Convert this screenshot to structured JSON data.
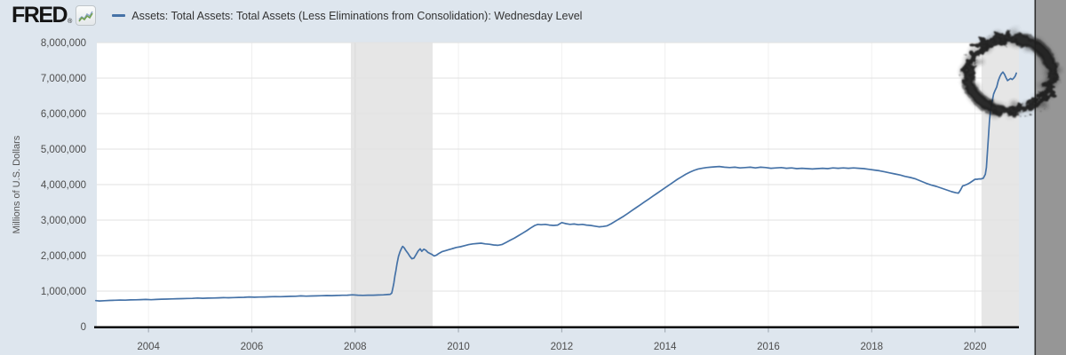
{
  "page": {
    "background": "#dee6ee"
  },
  "header": {
    "logo_text": "FRED",
    "registered_mark": "®",
    "logo_icon": "sparkline-chart-icon",
    "legend": {
      "swatch_color": "#4572a7",
      "label": "Assets: Total Assets: Total Assets (Less Eliminations from Consolidation): Wednesday Level"
    }
  },
  "y_axis_title": "Millions of U.S. Dollars",
  "right_panel": {
    "color": "#969696",
    "divider_color": "#2f2f2f"
  },
  "chart_data": {
    "type": "line",
    "title": "",
    "xlabel": "",
    "ylabel": "Millions of U.S. Dollars",
    "series_name": "Assets: Total Assets: Total Assets (Less Eliminations from Consolidation): Wednesday Level",
    "line_color": "#4572a7",
    "plot_background": "#ffffff",
    "grid": true,
    "gridline_color": "#e1e1e1",
    "vertical_gridline_color": "#f0f0f0",
    "recession_band_color": "#888888",
    "recession_band_opacity": 0.21,
    "x_range": [
      2003.0,
      2020.85
    ],
    "y_range": [
      0,
      8000000
    ],
    "x_ticks": [
      2004,
      2006,
      2008,
      2010,
      2012,
      2014,
      2016,
      2018,
      2020
    ],
    "y_ticks": [
      0,
      1000000,
      2000000,
      3000000,
      4000000,
      5000000,
      6000000,
      7000000,
      8000000
    ],
    "recession_bands": [
      {
        "from": 2007.917,
        "to": 2009.5
      },
      {
        "from": 2020.125,
        "to": 2020.85
      }
    ],
    "annotation": {
      "type": "hand-drawn-circle",
      "cx_year": 2020.68,
      "cy_value": 7100000,
      "rx_years": 0.82,
      "ry_value": 1020000,
      "color": "#1c1c1c"
    },
    "points": [
      [
        2002.98,
        732000
      ],
      [
        2003.05,
        722000
      ],
      [
        2003.15,
        730000
      ],
      [
        2003.25,
        738000
      ],
      [
        2003.35,
        742000
      ],
      [
        2003.45,
        748000
      ],
      [
        2003.55,
        744000
      ],
      [
        2003.65,
        752000
      ],
      [
        2003.75,
        756000
      ],
      [
        2003.85,
        760000
      ],
      [
        2003.95,
        766000
      ],
      [
        2004.05,
        758000
      ],
      [
        2004.15,
        764000
      ],
      [
        2004.25,
        772000
      ],
      [
        2004.35,
        776000
      ],
      [
        2004.45,
        780000
      ],
      [
        2004.55,
        784000
      ],
      [
        2004.65,
        788000
      ],
      [
        2004.75,
        792000
      ],
      [
        2004.85,
        796000
      ],
      [
        2004.95,
        804000
      ],
      [
        2005.05,
        798000
      ],
      [
        2005.15,
        802000
      ],
      [
        2005.25,
        806000
      ],
      [
        2005.35,
        810000
      ],
      [
        2005.45,
        814000
      ],
      [
        2005.55,
        812000
      ],
      [
        2005.65,
        818000
      ],
      [
        2005.75,
        822000
      ],
      [
        2005.85,
        826000
      ],
      [
        2005.95,
        834000
      ],
      [
        2006.05,
        828000
      ],
      [
        2006.15,
        832000
      ],
      [
        2006.25,
        836000
      ],
      [
        2006.35,
        840000
      ],
      [
        2006.45,
        844000
      ],
      [
        2006.55,
        842000
      ],
      [
        2006.65,
        848000
      ],
      [
        2006.75,
        852000
      ],
      [
        2006.85,
        856000
      ],
      [
        2006.95,
        864000
      ],
      [
        2007.05,
        858000
      ],
      [
        2007.15,
        862000
      ],
      [
        2007.25,
        866000
      ],
      [
        2007.35,
        870000
      ],
      [
        2007.45,
        874000
      ],
      [
        2007.55,
        872000
      ],
      [
        2007.65,
        878000
      ],
      [
        2007.75,
        882000
      ],
      [
        2007.85,
        886000
      ],
      [
        2007.95,
        894000
      ],
      [
        2008.05,
        884000
      ],
      [
        2008.15,
        880000
      ],
      [
        2008.25,
        886000
      ],
      [
        2008.35,
        884000
      ],
      [
        2008.45,
        890000
      ],
      [
        2008.55,
        894000
      ],
      [
        2008.62,
        902000
      ],
      [
        2008.68,
        910000
      ],
      [
        2008.71,
        945000
      ],
      [
        2008.73,
        1080000
      ],
      [
        2008.75,
        1230000
      ],
      [
        2008.77,
        1420000
      ],
      [
        2008.79,
        1580000
      ],
      [
        2008.81,
        1770000
      ],
      [
        2008.84,
        1980000
      ],
      [
        2008.87,
        2110000
      ],
      [
        2008.9,
        2210000
      ],
      [
        2008.92,
        2260000
      ],
      [
        2008.95,
        2220000
      ],
      [
        2008.98,
        2150000
      ],
      [
        2009.02,
        2070000
      ],
      [
        2009.06,
        1980000
      ],
      [
        2009.1,
        1910000
      ],
      [
        2009.14,
        1930000
      ],
      [
        2009.18,
        2030000
      ],
      [
        2009.22,
        2130000
      ],
      [
        2009.26,
        2190000
      ],
      [
        2009.29,
        2120000
      ],
      [
        2009.33,
        2180000
      ],
      [
        2009.37,
        2150000
      ],
      [
        2009.41,
        2090000
      ],
      [
        2009.45,
        2060000
      ],
      [
        2009.49,
        2030000
      ],
      [
        2009.53,
        1990000
      ],
      [
        2009.57,
        2010000
      ],
      [
        2009.62,
        2060000
      ],
      [
        2009.68,
        2110000
      ],
      [
        2009.75,
        2140000
      ],
      [
        2009.82,
        2170000
      ],
      [
        2009.89,
        2200000
      ],
      [
        2009.96,
        2230000
      ],
      [
        2010.04,
        2250000
      ],
      [
        2010.12,
        2280000
      ],
      [
        2010.2,
        2310000
      ],
      [
        2010.28,
        2330000
      ],
      [
        2010.36,
        2340000
      ],
      [
        2010.44,
        2350000
      ],
      [
        2010.52,
        2330000
      ],
      [
        2010.6,
        2320000
      ],
      [
        2010.68,
        2300000
      ],
      [
        2010.76,
        2290000
      ],
      [
        2010.84,
        2310000
      ],
      [
        2010.92,
        2370000
      ],
      [
        2011.0,
        2430000
      ],
      [
        2011.08,
        2490000
      ],
      [
        2011.16,
        2560000
      ],
      [
        2011.24,
        2630000
      ],
      [
        2011.32,
        2700000
      ],
      [
        2011.4,
        2780000
      ],
      [
        2011.48,
        2850000
      ],
      [
        2011.54,
        2880000
      ],
      [
        2011.6,
        2870000
      ],
      [
        2011.68,
        2880000
      ],
      [
        2011.76,
        2860000
      ],
      [
        2011.84,
        2850000
      ],
      [
        2011.92,
        2860000
      ],
      [
        2012.0,
        2930000
      ],
      [
        2012.08,
        2900000
      ],
      [
        2012.16,
        2880000
      ],
      [
        2012.24,
        2890000
      ],
      [
        2012.32,
        2870000
      ],
      [
        2012.4,
        2880000
      ],
      [
        2012.48,
        2860000
      ],
      [
        2012.56,
        2850000
      ],
      [
        2012.64,
        2830000
      ],
      [
        2012.72,
        2810000
      ],
      [
        2012.8,
        2820000
      ],
      [
        2012.88,
        2840000
      ],
      [
        2012.96,
        2900000
      ],
      [
        2013.04,
        2970000
      ],
      [
        2013.12,
        3040000
      ],
      [
        2013.2,
        3110000
      ],
      [
        2013.28,
        3190000
      ],
      [
        2013.36,
        3270000
      ],
      [
        2013.44,
        3350000
      ],
      [
        2013.52,
        3430000
      ],
      [
        2013.6,
        3510000
      ],
      [
        2013.68,
        3590000
      ],
      [
        2013.76,
        3670000
      ],
      [
        2013.84,
        3750000
      ],
      [
        2013.92,
        3830000
      ],
      [
        2014.0,
        3910000
      ],
      [
        2014.08,
        3990000
      ],
      [
        2014.16,
        4070000
      ],
      [
        2014.24,
        4150000
      ],
      [
        2014.32,
        4220000
      ],
      [
        2014.4,
        4290000
      ],
      [
        2014.48,
        4350000
      ],
      [
        2014.56,
        4400000
      ],
      [
        2014.64,
        4440000
      ],
      [
        2014.72,
        4460000
      ],
      [
        2014.8,
        4480000
      ],
      [
        2014.88,
        4490000
      ],
      [
        2014.96,
        4500000
      ],
      [
        2015.05,
        4510000
      ],
      [
        2015.15,
        4490000
      ],
      [
        2015.25,
        4480000
      ],
      [
        2015.35,
        4490000
      ],
      [
        2015.45,
        4470000
      ],
      [
        2015.55,
        4480000
      ],
      [
        2015.65,
        4490000
      ],
      [
        2015.75,
        4470000
      ],
      [
        2015.85,
        4490000
      ],
      [
        2015.95,
        4480000
      ],
      [
        2016.05,
        4460000
      ],
      [
        2016.15,
        4470000
      ],
      [
        2016.25,
        4480000
      ],
      [
        2016.35,
        4460000
      ],
      [
        2016.45,
        4470000
      ],
      [
        2016.55,
        4450000
      ],
      [
        2016.65,
        4460000
      ],
      [
        2016.75,
        4450000
      ],
      [
        2016.85,
        4440000
      ],
      [
        2016.95,
        4450000
      ],
      [
        2017.05,
        4460000
      ],
      [
        2017.15,
        4450000
      ],
      [
        2017.25,
        4470000
      ],
      [
        2017.35,
        4460000
      ],
      [
        2017.45,
        4470000
      ],
      [
        2017.55,
        4460000
      ],
      [
        2017.65,
        4470000
      ],
      [
        2017.75,
        4460000
      ],
      [
        2017.85,
        4450000
      ],
      [
        2017.95,
        4430000
      ],
      [
        2018.05,
        4410000
      ],
      [
        2018.15,
        4390000
      ],
      [
        2018.25,
        4360000
      ],
      [
        2018.35,
        4330000
      ],
      [
        2018.45,
        4300000
      ],
      [
        2018.55,
        4270000
      ],
      [
        2018.65,
        4230000
      ],
      [
        2018.75,
        4200000
      ],
      [
        2018.85,
        4160000
      ],
      [
        2018.95,
        4100000
      ],
      [
        2019.05,
        4040000
      ],
      [
        2019.15,
        3990000
      ],
      [
        2019.25,
        3950000
      ],
      [
        2019.35,
        3900000
      ],
      [
        2019.45,
        3850000
      ],
      [
        2019.55,
        3800000
      ],
      [
        2019.63,
        3770000
      ],
      [
        2019.68,
        3760000
      ],
      [
        2019.72,
        3850000
      ],
      [
        2019.76,
        3960000
      ],
      [
        2019.8,
        3980000
      ],
      [
        2019.85,
        4010000
      ],
      [
        2019.9,
        4050000
      ],
      [
        2019.95,
        4100000
      ],
      [
        2020.0,
        4150000
      ],
      [
        2020.04,
        4150000
      ],
      [
        2020.08,
        4160000
      ],
      [
        2020.12,
        4160000
      ],
      [
        2020.16,
        4180000
      ],
      [
        2020.2,
        4290000
      ],
      [
        2020.22,
        4480000
      ],
      [
        2020.24,
        4900000
      ],
      [
        2020.26,
        5350000
      ],
      [
        2020.28,
        5810000
      ],
      [
        2020.3,
        6080000
      ],
      [
        2020.33,
        6330000
      ],
      [
        2020.36,
        6550000
      ],
      [
        2020.39,
        6660000
      ],
      [
        2020.42,
        6750000
      ],
      [
        2020.45,
        6920000
      ],
      [
        2020.48,
        7040000
      ],
      [
        2020.51,
        7120000
      ],
      [
        2020.54,
        7170000
      ],
      [
        2020.57,
        7110000
      ],
      [
        2020.6,
        7010000
      ],
      [
        2020.63,
        6930000
      ],
      [
        2020.66,
        6960000
      ],
      [
        2020.69,
        6990000
      ],
      [
        2020.72,
        6960000
      ],
      [
        2020.75,
        7000000
      ],
      [
        2020.78,
        7060000
      ],
      [
        2020.8,
        7140000
      ]
    ]
  }
}
